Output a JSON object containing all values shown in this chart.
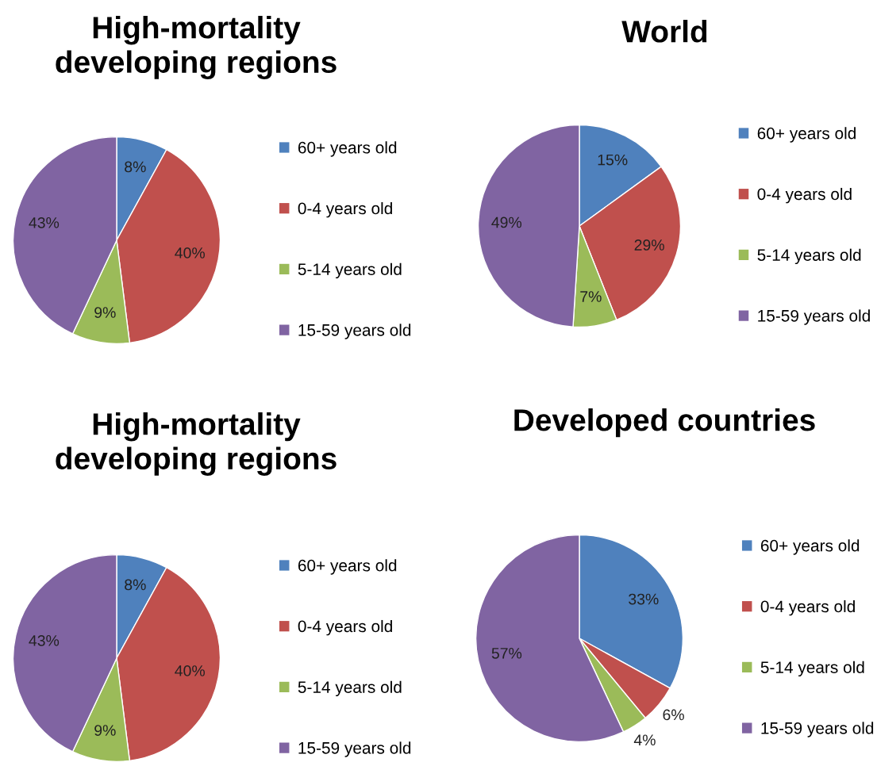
{
  "chart_data": [
    {
      "type": "pie",
      "title": "High-mortality\ndeveloping regions",
      "categories": [
        "60+ years old",
        "0-4 years old",
        "5-14 years old",
        "15-59 years old"
      ],
      "values": [
        8,
        40,
        9,
        43
      ],
      "value_labels": [
        "8%",
        "40%",
        "9%",
        "43%"
      ],
      "colors": [
        "#4f81bd",
        "#c0504d",
        "#9bbb59",
        "#8064a2"
      ],
      "legend": "right"
    },
    {
      "type": "pie",
      "title": "World",
      "categories": [
        "60+ years old",
        "0-4 years old",
        "5-14 years old",
        "15-59 years old"
      ],
      "values": [
        15,
        29,
        7,
        49
      ],
      "value_labels": [
        "15%",
        "29%",
        "7%",
        "49%"
      ],
      "colors": [
        "#4f81bd",
        "#c0504d",
        "#9bbb59",
        "#8064a2"
      ],
      "legend": "right"
    },
    {
      "type": "pie",
      "title": "High-mortality\ndeveloping regions",
      "categories": [
        "60+ years old",
        "0-4 years old",
        "5-14 years old",
        "15-59 years old"
      ],
      "values": [
        8,
        40,
        9,
        43
      ],
      "value_labels": [
        "8%",
        "40%",
        "9%",
        "43%"
      ],
      "colors": [
        "#4f81bd",
        "#c0504d",
        "#9bbb59",
        "#8064a2"
      ],
      "legend": "right"
    },
    {
      "type": "pie",
      "title": "Developed countries",
      "categories": [
        "60+ years old",
        "0-4 years old",
        "5-14 years old",
        "15-59 years old"
      ],
      "values": [
        33,
        6,
        4,
        57
      ],
      "value_labels": [
        "33%",
        "6%",
        "4%",
        "57%"
      ],
      "colors": [
        "#4f81bd",
        "#c0504d",
        "#9bbb59",
        "#8064a2"
      ],
      "legend": "right"
    }
  ]
}
